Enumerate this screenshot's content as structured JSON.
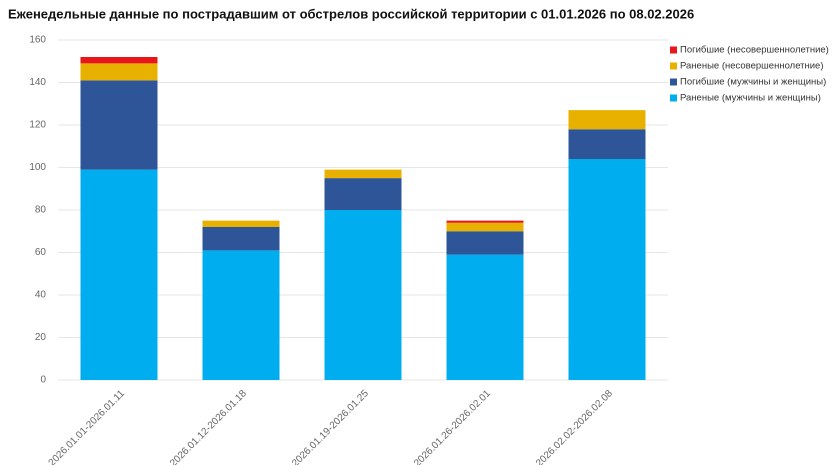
{
  "chart_data": {
    "type": "stacked_bar",
    "title": "Еженедельные данные по пострадавшим от обстрелов российской территории с 01.01.2026 по 08.02.2026",
    "categories": [
      "2026.01.01-2026.01.11",
      "2026.01.12-2026.01.18",
      "2026.01.19-2026.01.25",
      "2026.01.26-2026.02.01",
      "2026.02.02-2026.02.08"
    ],
    "series": [
      {
        "name": "Раненые (мужчины и женщины)",
        "color": "#00aeef",
        "values": [
          99,
          61,
          80,
          59,
          104
        ]
      },
      {
        "name": "Погибшие (мужчины и женщины)",
        "color": "#2e5597",
        "values": [
          42,
          11,
          15,
          11,
          14
        ]
      },
      {
        "name": "Раненые (несовершеннолетние)",
        "color": "#e8b100",
        "values": [
          8,
          3,
          4,
          4,
          9
        ]
      },
      {
        "name": "Погибшие (несовершеннолетние)",
        "color": "#e8161b",
        "values": [
          3,
          0,
          0,
          1,
          0
        ]
      }
    ],
    "ylim": [
      0,
      160
    ],
    "yticks": [
      0,
      20,
      40,
      60,
      80,
      100,
      120,
      140,
      160
    ],
    "grid": true,
    "legend": "top-right"
  }
}
